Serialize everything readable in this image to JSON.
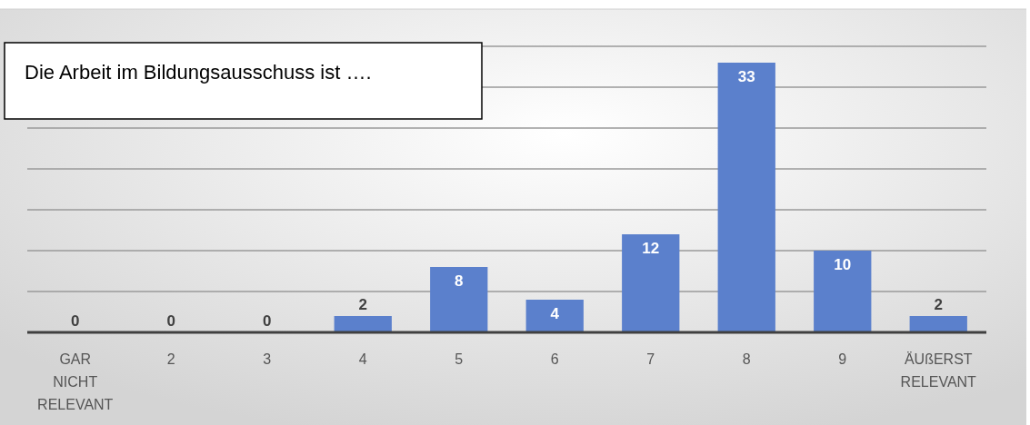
{
  "chart_data": {
    "type": "bar",
    "title": "Die Arbeit im Bildungsausschuss ist ….",
    "categories": [
      "GAR NICHT RELEVANT",
      "2",
      "3",
      "4",
      "5",
      "6",
      "7",
      "8",
      "9",
      "ÄUßERST RELEVANT"
    ],
    "values": [
      0,
      0,
      0,
      2,
      8,
      4,
      12,
      33,
      10,
      2
    ],
    "color": "#5b80cc",
    "ylim": [
      0,
      35
    ],
    "yticks": [
      {
        "value": 0,
        "label": null
      },
      {
        "value": 5,
        "label": null
      },
      {
        "value": 10,
        "label": null
      },
      {
        "value": 15,
        "label": null
      },
      {
        "value": 20,
        "label": null
      },
      {
        "value": 25,
        "label": null
      },
      {
        "value": 30,
        "label": null
      },
      {
        "value": 35,
        "label": null
      }
    ],
    "grid": "y",
    "tick_labels": "x",
    "data_labels": true
  }
}
